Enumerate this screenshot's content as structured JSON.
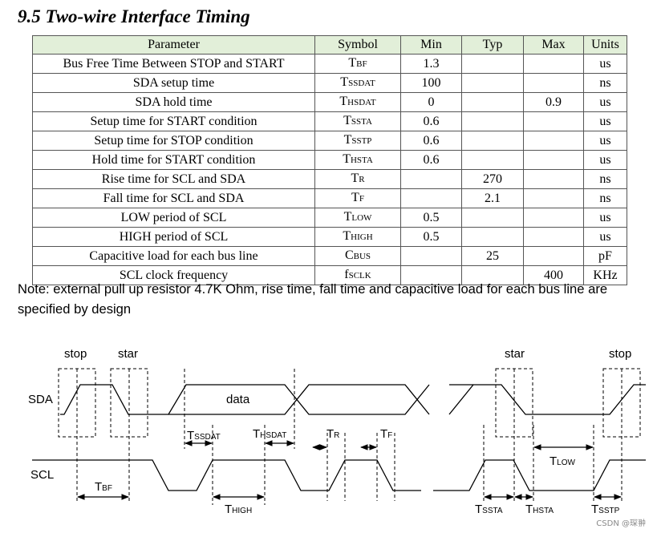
{
  "title": "9.5 Two-wire Interface Timing",
  "table": {
    "header": [
      "Parameter",
      "Symbol",
      "Min",
      "Typ",
      "Max",
      "Units"
    ],
    "rows": [
      {
        "parameter": "Bus Free Time Between STOP and START",
        "symbol": {
          "main": "T",
          "sub": "BF"
        },
        "min": 1.3,
        "units": "us"
      },
      {
        "parameter": "SDA setup time",
        "symbol": {
          "main": "T",
          "sub": "SSDAT"
        },
        "min": 100,
        "units": "ns"
      },
      {
        "parameter": "SDA hold time",
        "symbol": {
          "main": "T",
          "sub": "HSDAT"
        },
        "min": 0,
        "max": 0.9,
        "units": "us"
      },
      {
        "parameter": "Setup time for START condition",
        "symbol": {
          "main": "T",
          "sub": "SSTA"
        },
        "min": 0.6,
        "units": "us"
      },
      {
        "parameter": "Setup time for STOP condition",
        "symbol": {
          "main": "T",
          "sub": "SSTP"
        },
        "min": 0.6,
        "units": "us"
      },
      {
        "parameter": "Hold time for START condition",
        "symbol": {
          "main": "T",
          "sub": "HSTA"
        },
        "min": 0.6,
        "units": "us"
      },
      {
        "parameter": "Rise time for SCL and SDA",
        "symbol": {
          "main": "T",
          "sub": "R"
        },
        "typ": 270,
        "units": "ns"
      },
      {
        "parameter": "Fall time for SCL and SDA",
        "symbol": {
          "main": "T",
          "sub": "F"
        },
        "typ": 2.1,
        "units": "ns"
      },
      {
        "parameter": "LOW period of SCL",
        "symbol": {
          "main": "T",
          "sub": "LOW"
        },
        "min": 0.5,
        "units": "us"
      },
      {
        "parameter": "HIGH period of SCL",
        "symbol": {
          "main": "T",
          "sub": "HIGH"
        },
        "min": 0.5,
        "units": "us"
      },
      {
        "parameter": "Capacitive load for each bus line",
        "symbol": {
          "main": "C",
          "sub": "BUS"
        },
        "typ": 25,
        "units": "pF"
      },
      {
        "parameter": "SCL clock frequency",
        "symbol": {
          "main": "f",
          "sub": "SCLK"
        },
        "max": 400,
        "units": "KHz"
      }
    ]
  },
  "note": "Note: external pull up resistor 4.7K Ohm, rise time, fall time and capacitive load for each bus line are specified by design",
  "diagram": {
    "stop_left": "stop",
    "start_left": "star",
    "start_right": "star",
    "stop_right": "stop",
    "sda": "SDA",
    "scl": "SCL",
    "data": "data",
    "t_bf": {
      "main": "T",
      "sub": "BF"
    },
    "t_ssdat": {
      "main": "T",
      "sub": "SSDAT"
    },
    "t_hsdat": {
      "main": "T",
      "sub": "HSDAT"
    },
    "t_r": {
      "main": "T",
      "sub": "R"
    },
    "t_f": {
      "main": "T",
      "sub": "F"
    },
    "t_low": {
      "main": "T",
      "sub": "LOW"
    },
    "t_high": {
      "main": "T",
      "sub": "HIGH"
    },
    "t_ssta": {
      "main": "T",
      "sub": "SSTA"
    },
    "t_hsta": {
      "main": "T",
      "sub": "HSTA"
    },
    "t_sstp": {
      "main": "T",
      "sub": "SSTP"
    }
  },
  "watermark": "CSDN @琛翀"
}
